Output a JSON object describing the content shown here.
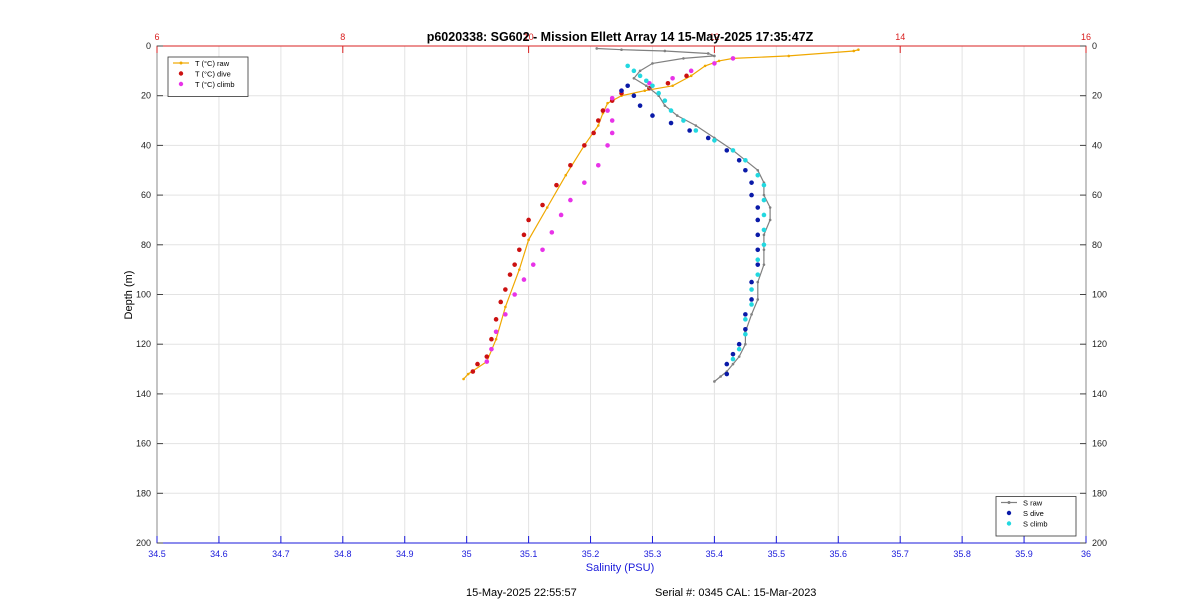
{
  "chart_data": {
    "type": "line",
    "title": "p6020338: SG602 - Mission Ellett Array 14 15-May-2025 17:35:47Z",
    "xlabel": "Salinity (PSU)",
    "ylabel": "Depth (m)",
    "x_bottom": {
      "range": [
        34.5,
        36
      ],
      "ticks": [
        "34.5",
        "34.6",
        "34.7",
        "34.8",
        "34.9",
        "35",
        "35.1",
        "35.2",
        "35.3",
        "35.4",
        "35.5",
        "35.6",
        "35.7",
        "35.8",
        "35.9",
        "36"
      ],
      "color": "#1a1adb"
    },
    "x_top": {
      "range": [
        6,
        16
      ],
      "ticks": [
        "6",
        "8",
        "10",
        "12",
        "14",
        "16"
      ],
      "color": "#d92020"
    },
    "y": {
      "range": [
        0,
        200
      ],
      "reversed": true,
      "ticks": [
        "0",
        "20",
        "40",
        "60",
        "80",
        "100",
        "120",
        "140",
        "160",
        "180",
        "200"
      ]
    },
    "grid": true,
    "legends": [
      {
        "position": "top-left",
        "entries": [
          {
            "label": "T (°C) raw",
            "color": "#f0a800"
          },
          {
            "label": "T (°C) dive",
            "color": "#cc1111"
          },
          {
            "label": "T (°C) climb",
            "color": "#e833e8"
          }
        ]
      },
      {
        "position": "bottom-right",
        "entries": [
          {
            "label": "S raw",
            "color": "#808080"
          },
          {
            "label": "S dive",
            "color": "#0a1aa8"
          },
          {
            "label": "S climb",
            "color": "#22d8e0"
          }
        ]
      }
    ],
    "series": [
      {
        "name": "T (°C) raw",
        "axis": "top",
        "color": "#f0a800",
        "marker": "line+dot",
        "points": [
          [
            13.55,
            1.5
          ],
          [
            13.5,
            2
          ],
          [
            12.8,
            4
          ],
          [
            12.2,
            5
          ],
          [
            12.05,
            6
          ],
          [
            11.9,
            8
          ],
          [
            11.75,
            12
          ],
          [
            11.55,
            16
          ],
          [
            11.25,
            18
          ],
          [
            11.0,
            20
          ],
          [
            10.85,
            23
          ],
          [
            10.8,
            27
          ],
          [
            10.75,
            32
          ],
          [
            10.6,
            40
          ],
          [
            10.4,
            52
          ],
          [
            10.2,
            65
          ],
          [
            10.0,
            78
          ],
          [
            9.9,
            90
          ],
          [
            9.75,
            105
          ],
          [
            9.65,
            118
          ],
          [
            9.55,
            127
          ],
          [
            9.35,
            132
          ],
          [
            9.3,
            134
          ]
        ]
      },
      {
        "name": "T (°C) dive",
        "axis": "top",
        "color": "#cc1111",
        "marker": "dot",
        "points": [
          [
            11.7,
            12
          ],
          [
            11.5,
            15
          ],
          [
            11.3,
            17
          ],
          [
            11.0,
            19
          ],
          [
            10.9,
            22
          ],
          [
            10.8,
            26
          ],
          [
            10.75,
            30
          ],
          [
            10.7,
            35
          ],
          [
            10.6,
            40
          ],
          [
            10.45,
            48
          ],
          [
            10.3,
            56
          ],
          [
            10.15,
            64
          ],
          [
            10.0,
            70
          ],
          [
            9.95,
            76
          ],
          [
            9.9,
            82
          ],
          [
            9.85,
            88
          ],
          [
            9.8,
            92
          ],
          [
            9.75,
            98
          ],
          [
            9.7,
            103
          ],
          [
            9.65,
            110
          ],
          [
            9.6,
            118
          ],
          [
            9.55,
            125
          ],
          [
            9.45,
            128
          ],
          [
            9.4,
            131
          ]
        ]
      },
      {
        "name": "T (°C) climb",
        "axis": "top",
        "color": "#e833e8",
        "marker": "dot",
        "points": [
          [
            12.2,
            5
          ],
          [
            12.0,
            7
          ],
          [
            11.75,
            10
          ],
          [
            11.55,
            13
          ],
          [
            11.3,
            15
          ],
          [
            11.0,
            18
          ],
          [
            10.9,
            21
          ],
          [
            10.85,
            26
          ],
          [
            10.9,
            30
          ],
          [
            10.9,
            35
          ],
          [
            10.85,
            40
          ],
          [
            10.75,
            48
          ],
          [
            10.6,
            55
          ],
          [
            10.45,
            62
          ],
          [
            10.35,
            68
          ],
          [
            10.25,
            75
          ],
          [
            10.15,
            82
          ],
          [
            10.05,
            88
          ],
          [
            9.95,
            94
          ],
          [
            9.85,
            100
          ],
          [
            9.75,
            108
          ],
          [
            9.65,
            115
          ],
          [
            9.6,
            122
          ],
          [
            9.55,
            127
          ]
        ]
      },
      {
        "name": "S raw",
        "axis": "bottom",
        "color": "#808080",
        "marker": "line+dot",
        "points": [
          [
            35.21,
            1
          ],
          [
            35.25,
            1.5
          ],
          [
            35.32,
            2
          ],
          [
            35.39,
            3
          ],
          [
            35.4,
            4
          ],
          [
            35.35,
            5
          ],
          [
            35.3,
            7
          ],
          [
            35.28,
            10
          ],
          [
            35.27,
            13
          ],
          [
            35.29,
            16
          ],
          [
            35.31,
            20
          ],
          [
            35.32,
            24
          ],
          [
            35.34,
            28
          ],
          [
            35.37,
            32
          ],
          [
            35.4,
            37
          ],
          [
            35.43,
            42
          ],
          [
            35.45,
            46
          ],
          [
            35.47,
            50
          ],
          [
            35.48,
            55
          ],
          [
            35.48,
            60
          ],
          [
            35.49,
            65
          ],
          [
            35.49,
            70
          ],
          [
            35.48,
            76
          ],
          [
            35.48,
            82
          ],
          [
            35.48,
            88
          ],
          [
            35.47,
            95
          ],
          [
            35.47,
            102
          ],
          [
            35.46,
            108
          ],
          [
            35.45,
            115
          ],
          [
            35.45,
            120
          ],
          [
            35.44,
            125
          ],
          [
            35.43,
            128
          ],
          [
            35.42,
            131
          ],
          [
            35.41,
            133
          ],
          [
            35.4,
            135
          ]
        ]
      },
      {
        "name": "S dive",
        "axis": "bottom",
        "color": "#0a1aa8",
        "marker": "dot",
        "points": [
          [
            35.25,
            18
          ],
          [
            35.26,
            16
          ],
          [
            35.27,
            20
          ],
          [
            35.28,
            24
          ],
          [
            35.3,
            28
          ],
          [
            35.33,
            31
          ],
          [
            35.36,
            34
          ],
          [
            35.39,
            37
          ],
          [
            35.42,
            42
          ],
          [
            35.44,
            46
          ],
          [
            35.45,
            50
          ],
          [
            35.46,
            55
          ],
          [
            35.46,
            60
          ],
          [
            35.47,
            65
          ],
          [
            35.47,
            70
          ],
          [
            35.47,
            76
          ],
          [
            35.47,
            82
          ],
          [
            35.47,
            88
          ],
          [
            35.46,
            95
          ],
          [
            35.46,
            102
          ],
          [
            35.45,
            108
          ],
          [
            35.45,
            114
          ],
          [
            35.44,
            120
          ],
          [
            35.43,
            124
          ],
          [
            35.42,
            128
          ],
          [
            35.42,
            132
          ]
        ]
      },
      {
        "name": "S climb",
        "axis": "bottom",
        "color": "#22d8e0",
        "marker": "dot",
        "points": [
          [
            35.26,
            8
          ],
          [
            35.27,
            10
          ],
          [
            35.28,
            12
          ],
          [
            35.29,
            14
          ],
          [
            35.3,
            16
          ],
          [
            35.31,
            19
          ],
          [
            35.32,
            22
          ],
          [
            35.33,
            26
          ],
          [
            35.35,
            30
          ],
          [
            35.37,
            34
          ],
          [
            35.4,
            38
          ],
          [
            35.43,
            42
          ],
          [
            35.45,
            46
          ],
          [
            35.47,
            52
          ],
          [
            35.48,
            56
          ],
          [
            35.48,
            62
          ],
          [
            35.48,
            68
          ],
          [
            35.48,
            74
          ],
          [
            35.48,
            80
          ],
          [
            35.47,
            86
          ],
          [
            35.47,
            92
          ],
          [
            35.46,
            98
          ],
          [
            35.46,
            104
          ],
          [
            35.45,
            110
          ],
          [
            35.45,
            116
          ],
          [
            35.44,
            122
          ],
          [
            35.43,
            126
          ]
        ]
      }
    ]
  },
  "footer": {
    "timestamp": "15-May-2025 22:55:57",
    "serial": "Serial #: 0345  CAL: 15-Mar-2023"
  }
}
